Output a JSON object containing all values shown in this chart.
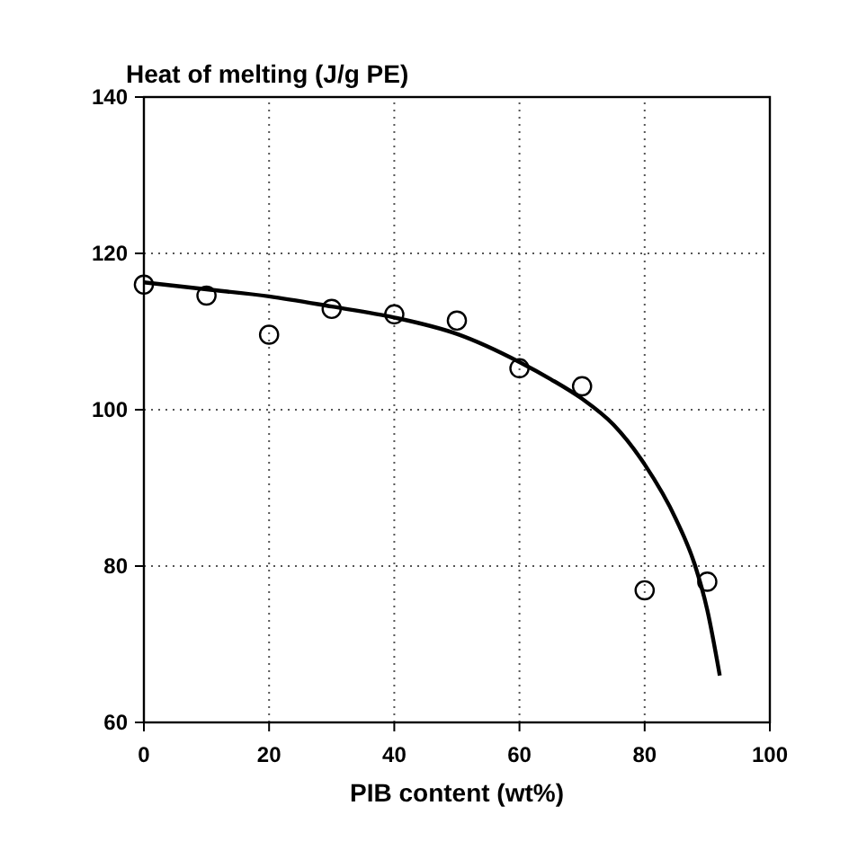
{
  "chart_data": {
    "type": "scatter",
    "title": "Heat of melting (J/g PE)",
    "xlabel": "PIB content (wt%)",
    "xlim": [
      0,
      100
    ],
    "xticks": [
      0,
      20,
      40,
      60,
      80,
      100
    ],
    "ylim": [
      60,
      140
    ],
    "yticks": [
      60,
      80,
      100,
      120,
      140
    ],
    "grid": true,
    "series": [
      {
        "color": "#000000",
        "marker": "circle",
        "x": [
          0,
          10,
          20,
          30,
          40,
          50,
          60,
          70,
          80,
          90
        ],
        "values": [
          116.0,
          114.6,
          109.6,
          112.9,
          112.2,
          111.4,
          105.3,
          103.0,
          76.9,
          78.0
        ]
      },
      {
        "type": "line",
        "color": "#000000",
        "line_style": "solid",
        "x": [
          0,
          10,
          20,
          30,
          40,
          50,
          60,
          65,
          70,
          75,
          80,
          85,
          88,
          90,
          92
        ],
        "values": [
          116.3,
          115.4,
          114.5,
          113.2,
          111.8,
          109.7,
          106.1,
          103.9,
          101.4,
          98.1,
          93.0,
          86.0,
          80.2,
          74.4,
          66.0
        ]
      }
    ]
  }
}
